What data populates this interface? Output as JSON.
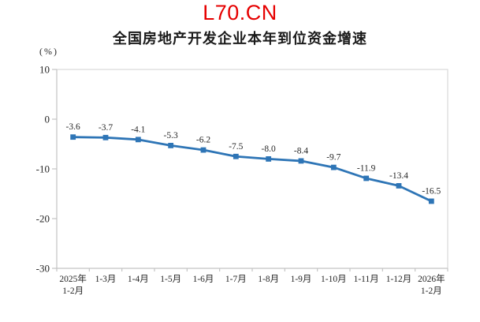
{
  "header": {
    "site_label": "L70.CN",
    "accent_color": "#e60000"
  },
  "chart_data": {
    "type": "line",
    "title": "全国房地产开发企业本年到位资金增速",
    "unit_label": "(%)",
    "categories": [
      "2025年\n1-2月",
      "1-3月",
      "1-4月",
      "1-5月",
      "1-6月",
      "1-7月",
      "1-8月",
      "1-9月",
      "1-10月",
      "1-11月",
      "1-12月",
      "2026年\n1-2月"
    ],
    "values": [
      -3.6,
      -3.7,
      -4.1,
      -5.3,
      -6.2,
      -7.5,
      -8.0,
      -8.4,
      -9.7,
      -11.9,
      -13.4,
      -16.5
    ],
    "data_labels": [
      "-3.6",
      "-3.7",
      "-4.1",
      "-5.3",
      "-6.2",
      "-7.5",
      "-8.0",
      "-8.4",
      "-9.7",
      "-11.9",
      "-13.4",
      "-16.5"
    ],
    "ylim": [
      -30,
      10
    ],
    "y_ticks": [
      10,
      0,
      -10,
      -20,
      -30
    ],
    "grid": false,
    "legend": "none",
    "marker": "square",
    "line_color": "#2e75b6",
    "axis_color": "#c3c3c3",
    "border_color": "#d9d9d9",
    "label_color": "#262626"
  }
}
